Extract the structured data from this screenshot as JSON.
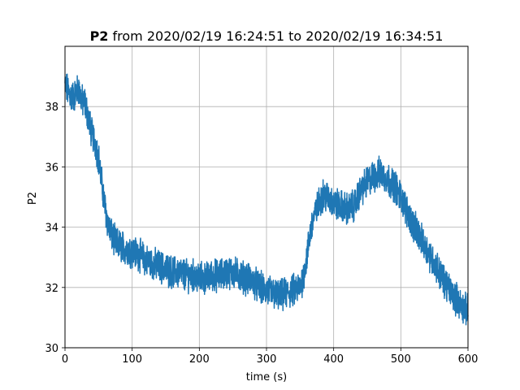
{
  "chart_data": {
    "type": "line",
    "title_bold": "P2",
    "title_rest": " from 2020/02/19 16:24:51 to 2020/02/19 16:34:51",
    "xlabel": "time (s)",
    "ylabel": "P2",
    "xlim": [
      0,
      600
    ],
    "ylim": [
      30,
      40
    ],
    "xticks": [
      0,
      100,
      200,
      300,
      400,
      500,
      600
    ],
    "yticks": [
      30,
      32,
      34,
      36,
      38
    ],
    "grid": true,
    "line_color": "#1f77b4",
    "series": [
      {
        "x": [
          0,
          5,
          10,
          15,
          20,
          25,
          30,
          35,
          40,
          45,
          50,
          55,
          60,
          65,
          70,
          75,
          80,
          90,
          100,
          110,
          120,
          130,
          140,
          150,
          160,
          170,
          180,
          190,
          200,
          210,
          220,
          230,
          240,
          250,
          260,
          270,
          280,
          290,
          300,
          310,
          320,
          330,
          340,
          350,
          355,
          360,
          365,
          370,
          375,
          380,
          385,
          390,
          400,
          410,
          420,
          430,
          440,
          450,
          460,
          470,
          480,
          490,
          500,
          510,
          520,
          530,
          540,
          550,
          560,
          570,
          580,
          590,
          600
        ],
        "y": [
          38.7,
          38.5,
          38.3,
          38.4,
          38.6,
          38.2,
          38.1,
          37.6,
          37.1,
          36.8,
          36.3,
          35.4,
          34.6,
          34.0,
          33.7,
          33.5,
          33.4,
          33.3,
          33.2,
          33.1,
          32.9,
          32.8,
          32.7,
          32.6,
          32.5,
          32.5,
          32.4,
          32.4,
          32.3,
          32.3,
          32.4,
          32.4,
          32.5,
          32.5,
          32.4,
          32.3,
          32.2,
          32.0,
          31.9,
          31.8,
          31.7,
          31.8,
          31.9,
          32.0,
          32.4,
          33.0,
          33.8,
          34.3,
          34.6,
          34.9,
          35.1,
          35.0,
          34.8,
          34.7,
          34.6,
          34.7,
          35.2,
          35.5,
          35.7,
          35.8,
          35.6,
          35.4,
          35.0,
          34.5,
          34.0,
          33.6,
          33.2,
          32.8,
          32.4,
          32.0,
          31.7,
          31.4,
          31.2
        ]
      }
    ]
  }
}
